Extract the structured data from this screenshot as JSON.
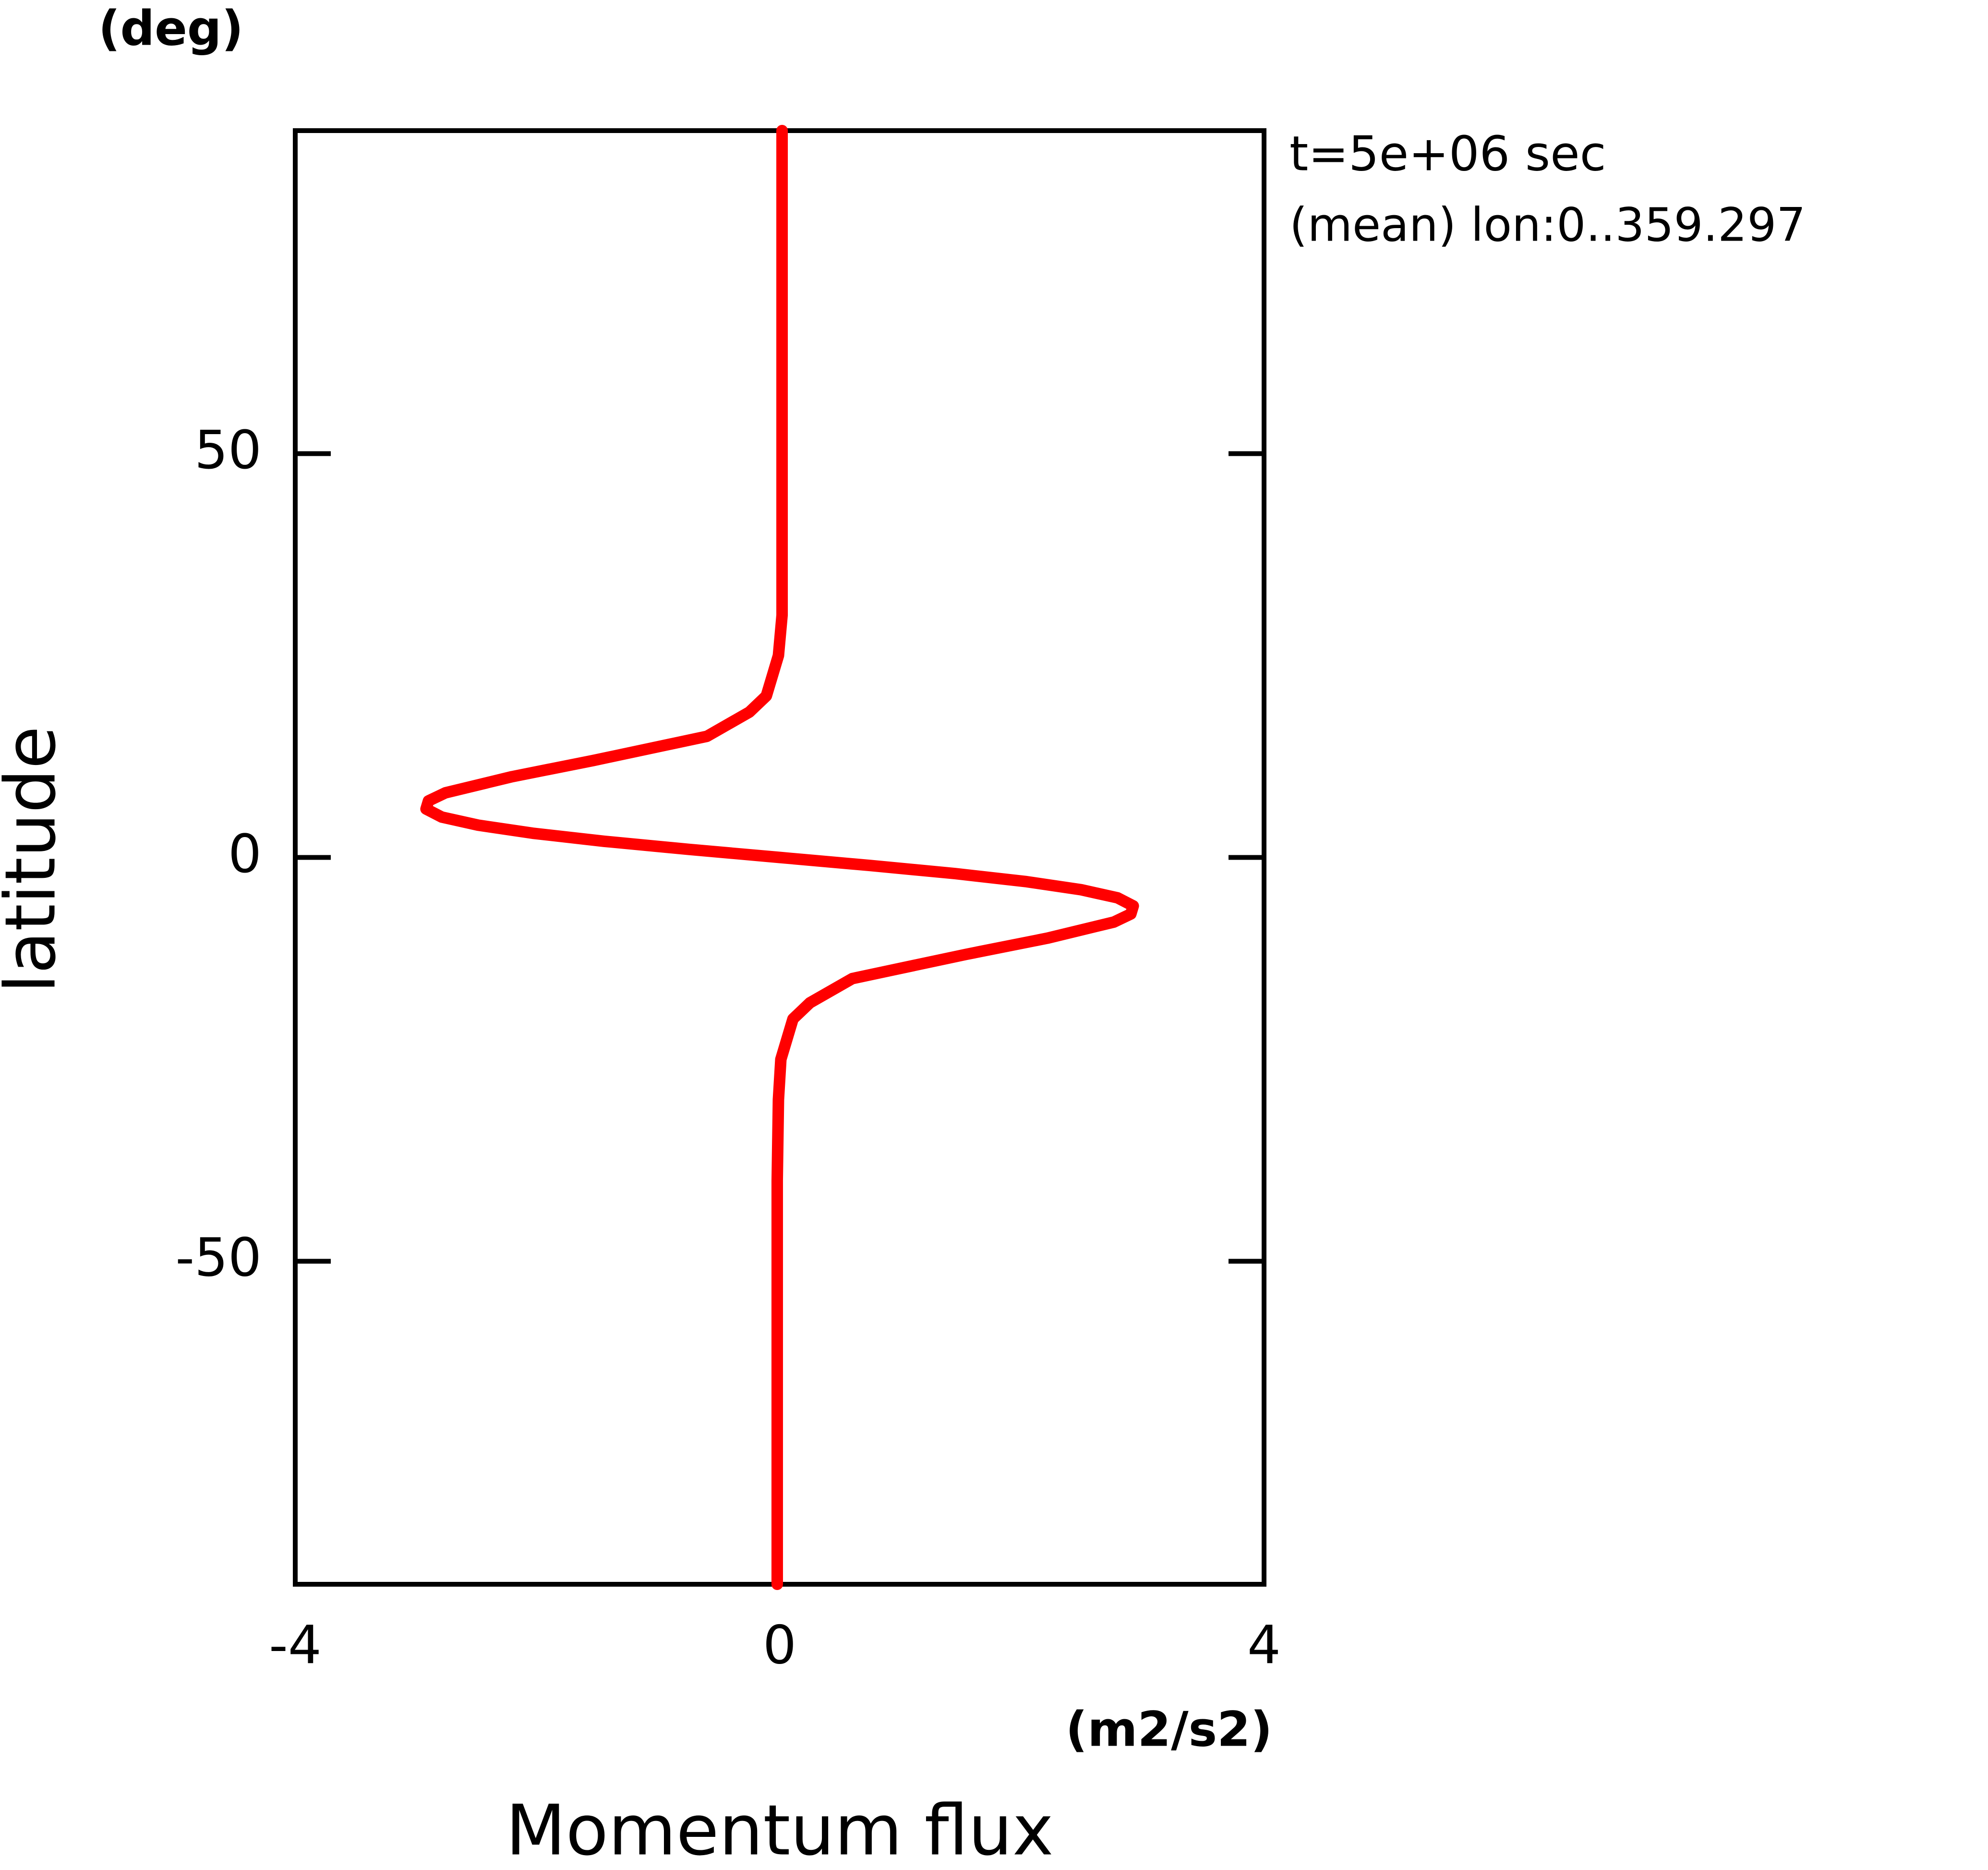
{
  "chart_data": {
    "type": "line",
    "title": "Momentum flux",
    "x_unit": "(m2/s2)",
    "y_label": "latitude",
    "y_unit": "(deg)",
    "annotations": [
      "t=5e+06 sec",
      "(mean) lon:0..359.297"
    ],
    "xlim": [
      -4,
      4
    ],
    "xticks": [
      -4,
      0,
      4
    ],
    "ylim": [
      -90,
      90
    ],
    "yticks": [
      -50,
      0,
      50
    ],
    "y": [
      -90,
      -60,
      -40,
      -30,
      -25,
      -20,
      -18,
      -15,
      -12,
      -10,
      -8,
      -7,
      -6,
      -5,
      -4,
      -3,
      -2,
      -1,
      0,
      1,
      2,
      3,
      4,
      5,
      6,
      7,
      8,
      10,
      12,
      15,
      18,
      20,
      25,
      30,
      40,
      60,
      90
    ],
    "series": [
      {
        "color": "#ff0000",
        "values": [
          -0.02,
          -0.02,
          -0.02,
          -0.01,
          0.01,
          0.11,
          0.25,
          0.6,
          1.54,
          2.21,
          2.76,
          2.9,
          2.92,
          2.79,
          2.49,
          2.04,
          1.45,
          0.75,
          0,
          -0.75,
          -1.45,
          -2.04,
          -2.49,
          -2.79,
          -2.92,
          -2.9,
          -2.76,
          -2.21,
          -1.54,
          -0.6,
          -0.25,
          -0.11,
          -0.01,
          0.02,
          0.02,
          0.02,
          0.02
        ]
      }
    ]
  }
}
